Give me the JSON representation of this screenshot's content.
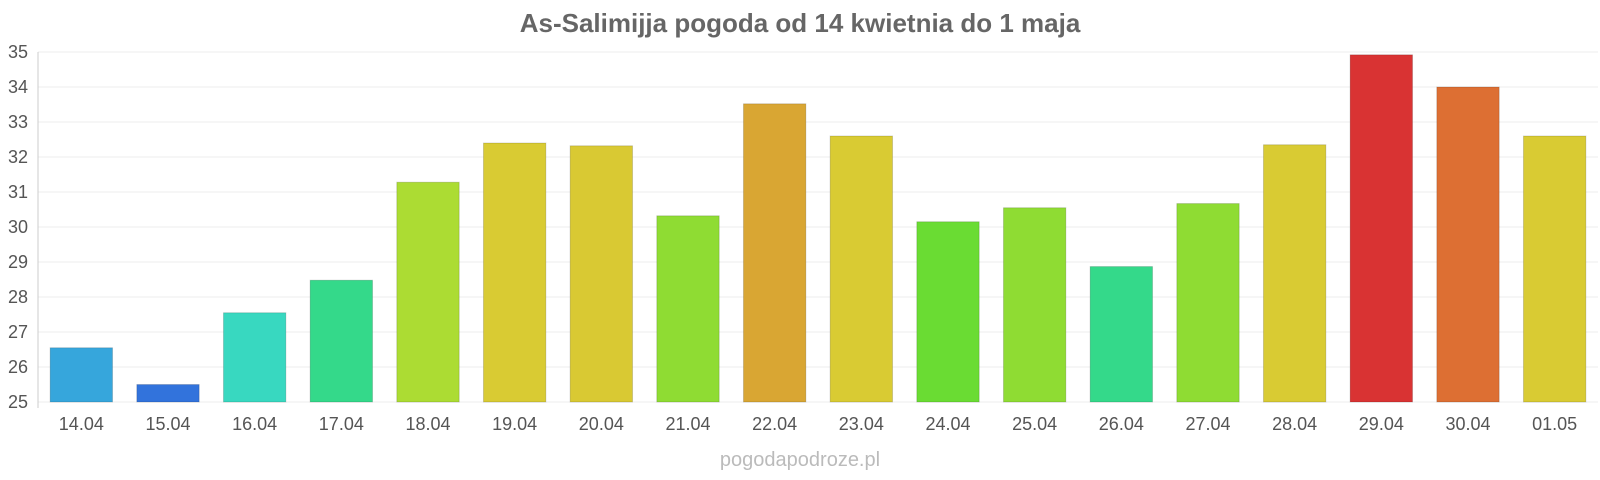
{
  "chart_data": {
    "type": "bar",
    "title": "As-Salimijja pogoda od 14 kwietnia do 1 maja",
    "xlabel": "",
    "ylabel": "",
    "categories": [
      "14.04",
      "15.04",
      "16.04",
      "17.04",
      "18.04",
      "19.04",
      "20.04",
      "21.04",
      "22.04",
      "23.04",
      "24.04",
      "25.04",
      "26.04",
      "27.04",
      "28.04",
      "29.04",
      "30.04",
      "01.05"
    ],
    "values": [
      26.55,
      25.5,
      27.55,
      28.48,
      31.28,
      32.4,
      32.32,
      30.32,
      33.52,
      32.6,
      30.15,
      30.55,
      28.87,
      30.67,
      32.35,
      34.92,
      34.0,
      32.6
    ],
    "colors": [
      "#36a6dc",
      "#3273dc",
      "#38d8c0",
      "#34d98a",
      "#acdc33",
      "#d9cb33",
      "#d9c933",
      "#8fdc33",
      "#d9a633",
      "#d9cb33",
      "#6adc33",
      "#8fdc33",
      "#34d98a",
      "#8fdc33",
      "#d9cb33",
      "#d93333",
      "#dd6f33",
      "#d9cb33"
    ],
    "yticks": [
      25,
      26,
      27,
      28,
      29,
      30,
      31,
      32,
      33,
      34,
      35
    ],
    "ylim": [
      25,
      35
    ],
    "grid": true,
    "legend": "none"
  },
  "footer": {
    "credit": "pogodapodroze.pl"
  }
}
